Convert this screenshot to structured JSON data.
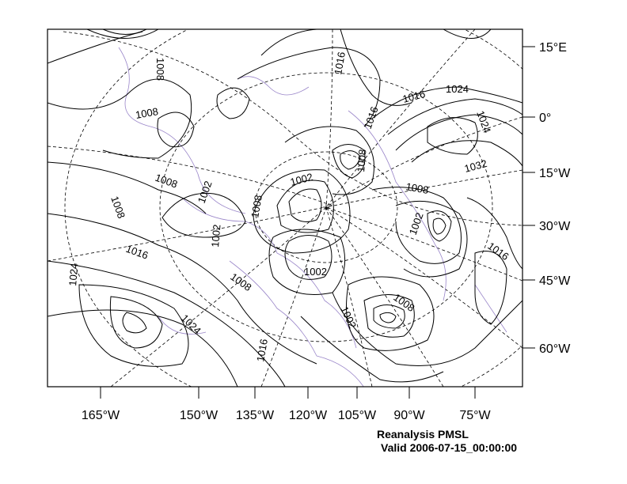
{
  "map": {
    "right_axis_labels": [
      "15°E",
      "0°",
      "15°W",
      "30°W",
      "45°W",
      "60°W"
    ],
    "bottom_axis_labels": [
      "165°W",
      "150°W",
      "135°W",
      "120°W",
      "105°W",
      "90°W",
      "75°W"
    ],
    "contour_labels": [
      "1008",
      "1016",
      "1008",
      "1016",
      "1024",
      "1024",
      "1016",
      "1008",
      "1008",
      "1032",
      "1002",
      "1008",
      "1008",
      "1002",
      "1002",
      "1002",
      "1008",
      "1002",
      "1016",
      "1016",
      "1024",
      "1008",
      "1008",
      "1024",
      "1002",
      "1016",
      "1008"
    ],
    "colors": {
      "contour": "#000000",
      "coastline": "#9a86c9",
      "frame": "#000000"
    }
  },
  "footer": {
    "title": "Reanalysis PMSL",
    "valid": "Valid 2006-07-15_00:00:00"
  }
}
